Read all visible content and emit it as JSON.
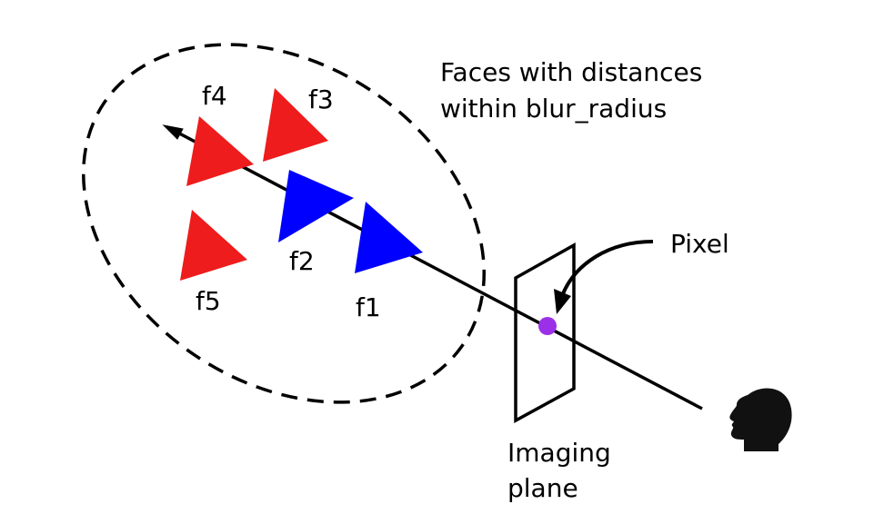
{
  "labels": {
    "caption_line1": "Faces with distances",
    "caption_line2": "within blur_radius",
    "pixel": "Pixel",
    "imaging_line1": "Imaging",
    "imaging_line2": "plane"
  },
  "faces": [
    {
      "id": "f1",
      "label": "f1",
      "color": "#0000ff"
    },
    {
      "id": "f2",
      "label": "f2",
      "color": "#0000ff"
    },
    {
      "id": "f3",
      "label": "f3",
      "color": "#ee1c1c"
    },
    {
      "id": "f4",
      "label": "f4",
      "color": "#ee1c1c"
    },
    {
      "id": "f5",
      "label": "f5",
      "color": "#ee1c1c"
    }
  ],
  "colors": {
    "in_ray_face": "#0000ff",
    "off_ray_face": "#ee1c1c",
    "pixel_dot": "#9b30e8",
    "line": "#000000",
    "viewer": "#111111"
  },
  "icons": {
    "viewer": "person-head-silhouette-icon",
    "ray_arrow": "arrow-head-icon"
  }
}
